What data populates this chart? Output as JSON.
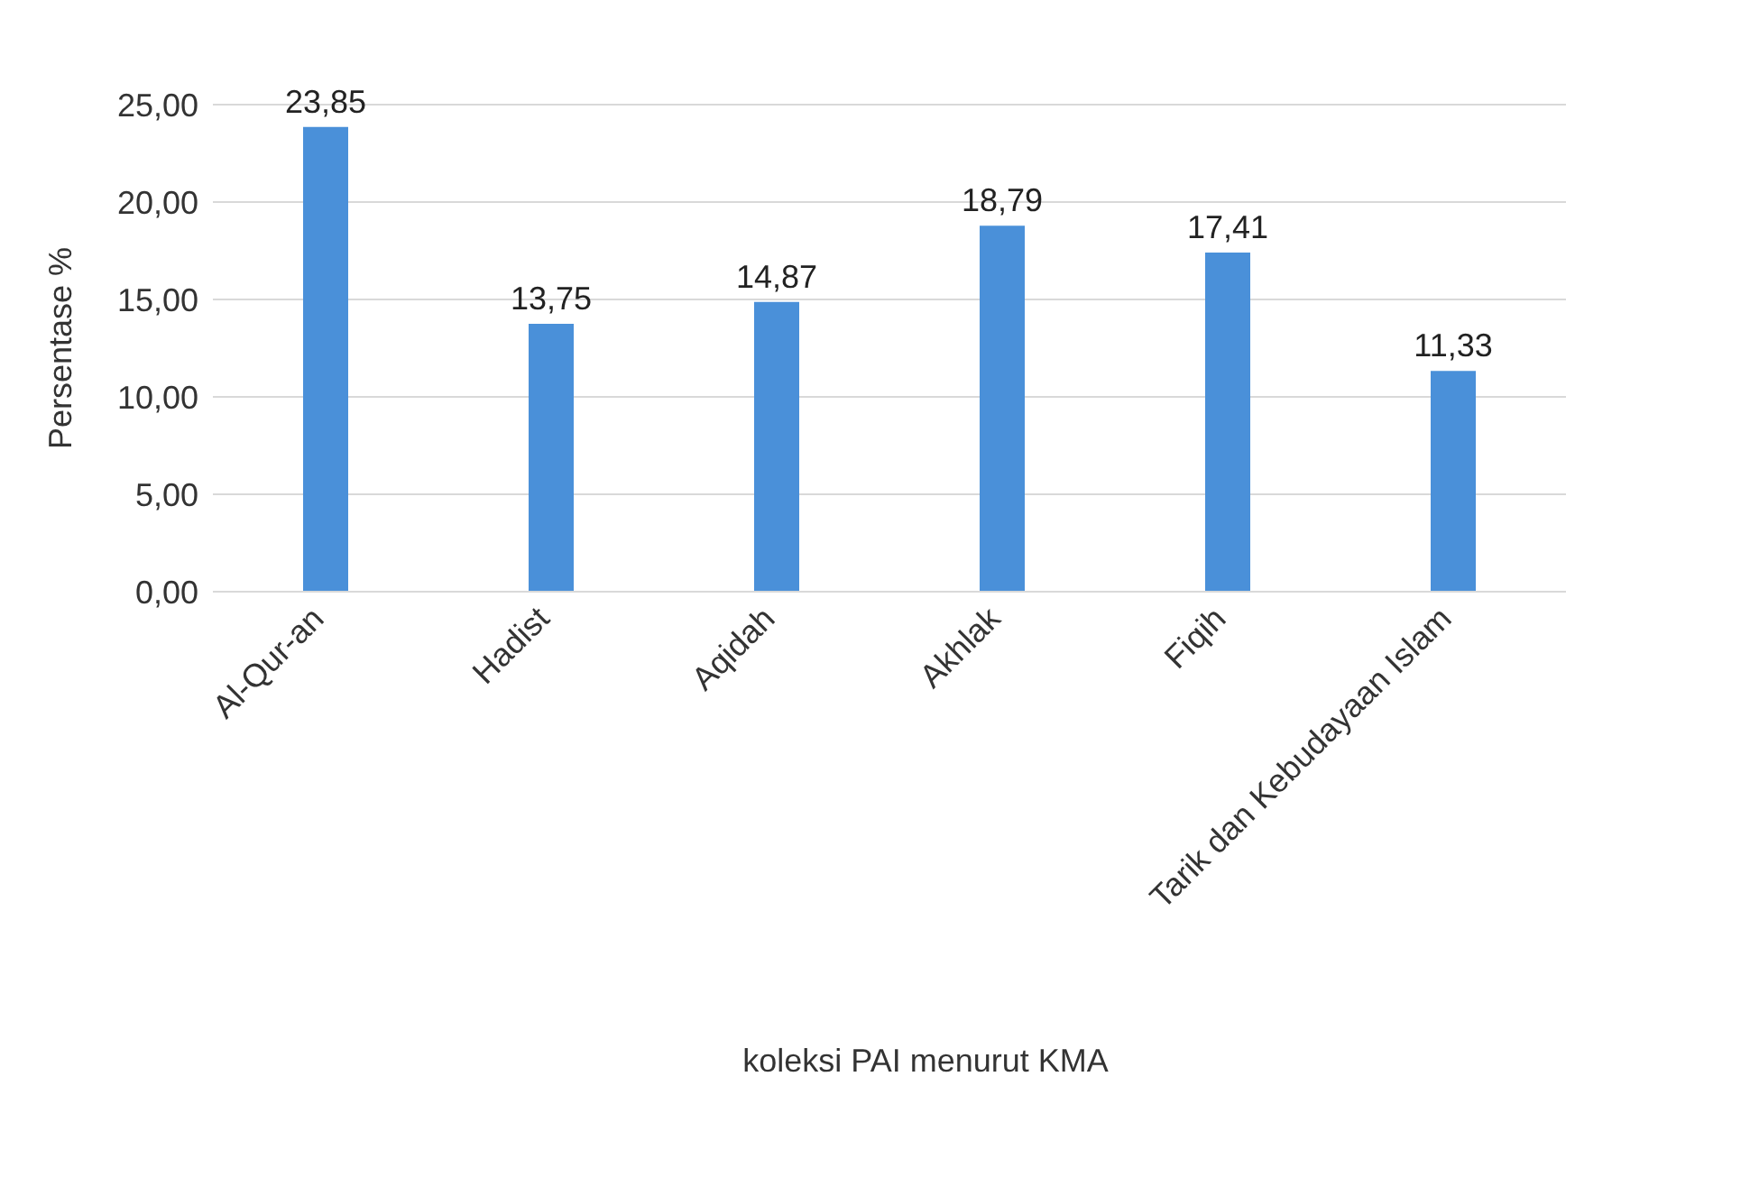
{
  "chart_data": {
    "type": "bar",
    "xlabel": "koleksi PAI menurut KMA",
    "ylabel": "Persentase %",
    "categories": [
      "Al-Qur-an",
      "Hadist",
      "Aqidah",
      "Akhlak",
      "Fiqih",
      "Tarik dan Kebudayaan Islam"
    ],
    "values": [
      23.85,
      13.75,
      14.87,
      18.79,
      17.41,
      11.33
    ],
    "value_labels": [
      "23,85",
      "13,75",
      "14,87",
      "18,79",
      "17,41",
      "11,33"
    ],
    "color": "#4a90d9",
    "ylim": [
      0,
      25
    ],
    "yticks": [
      {
        "value": 0,
        "label": "0,00"
      },
      {
        "value": 5,
        "label": "5,00"
      },
      {
        "value": 10,
        "label": "10,00"
      },
      {
        "value": 15,
        "label": "15,00"
      },
      {
        "value": 20,
        "label": "20,00"
      },
      {
        "value": 25,
        "label": "25,00"
      }
    ],
    "grid": "y"
  }
}
